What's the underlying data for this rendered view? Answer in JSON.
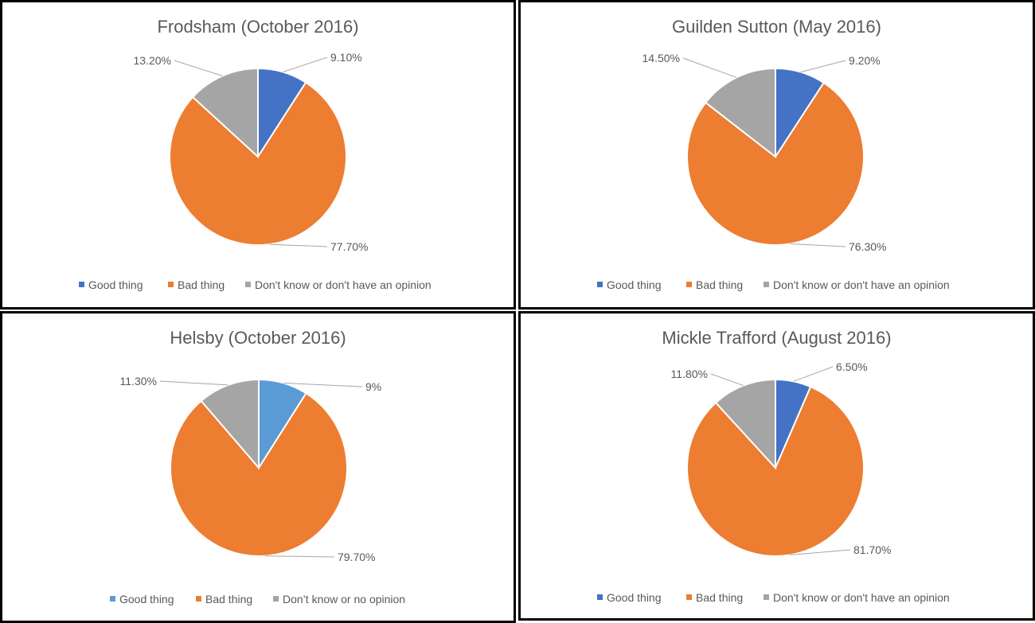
{
  "chart_data": [
    {
      "type": "pie",
      "title": "Frodsham (October 2016)",
      "categories": [
        "Good thing",
        "Bad thing",
        "Don't know or don't have an opinion"
      ],
      "values": [
        9.1,
        77.7,
        13.2
      ],
      "data_labels": [
        "9.10%",
        "77.70%",
        "13.20%"
      ],
      "colors": [
        "#4472c4",
        "#ed7d31",
        "#a5a5a5"
      ],
      "legend": "bottom"
    },
    {
      "type": "pie",
      "title": "Guilden Sutton (May 2016)",
      "categories": [
        "Good thing",
        "Bad thing",
        "Don't know or don't have an opinion"
      ],
      "values": [
        9.2,
        76.3,
        14.5
      ],
      "data_labels": [
        "9.20%",
        "76.30%",
        "14.50%"
      ],
      "colors": [
        "#4472c4",
        "#ed7d31",
        "#a5a5a5"
      ],
      "legend": "bottom"
    },
    {
      "type": "pie",
      "title": "Helsby (October 2016)",
      "categories": [
        "Good thing",
        "Bad thing",
        "Don’t know or no opinion"
      ],
      "values": [
        9,
        79.7,
        11.3
      ],
      "data_labels": [
        "9%",
        "79.70%",
        "11.30%"
      ],
      "colors": [
        "#5b9bd5",
        "#ed7d31",
        "#a5a5a5"
      ],
      "legend": "bottom"
    },
    {
      "type": "pie",
      "title": "Mickle Trafford (August 2016)",
      "categories": [
        "Good thing",
        "Bad thing",
        "Don't know or don't have an opinion"
      ],
      "values": [
        6.5,
        81.7,
        11.8
      ],
      "data_labels": [
        "6.50%",
        "81.70%",
        "11.80%"
      ],
      "colors": [
        "#4472c4",
        "#ed7d31",
        "#a5a5a5"
      ],
      "legend": "bottom"
    }
  ]
}
